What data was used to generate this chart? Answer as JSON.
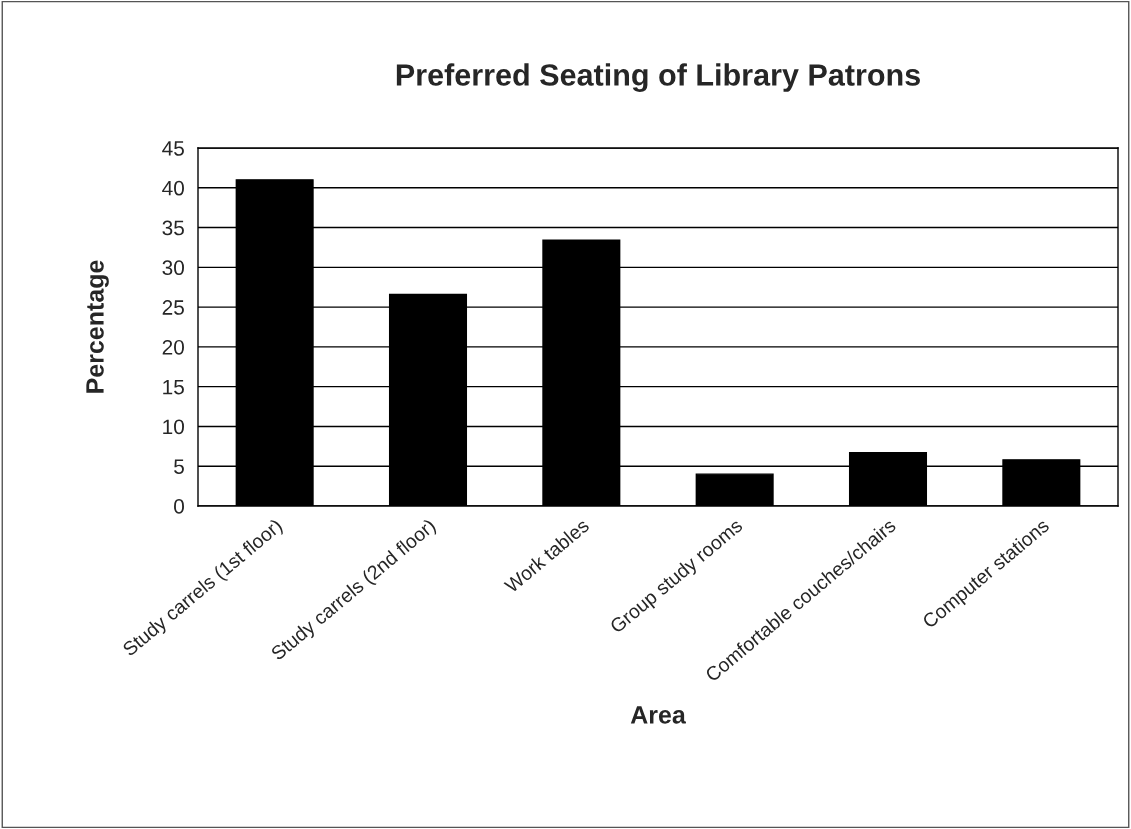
{
  "chart_data": {
    "type": "bar",
    "title": "Preferred Seating of Library Patrons",
    "xlabel": "Area",
    "ylabel": "Percentage",
    "categories": [
      "Study carrels (1st floor)",
      "Study carrels (2nd floor)",
      "Work tables",
      "Group study rooms",
      "Comfortable couches/chairs",
      "Computer stations"
    ],
    "values": [
      41,
      26.6,
      33.4,
      4,
      6.7,
      5.8
    ],
    "color": "#000000",
    "ylim": [
      0,
      45
    ],
    "yticks": [
      0,
      5,
      10,
      15,
      20,
      25,
      30,
      35,
      40,
      45
    ],
    "grid": "y",
    "legend": false
  }
}
